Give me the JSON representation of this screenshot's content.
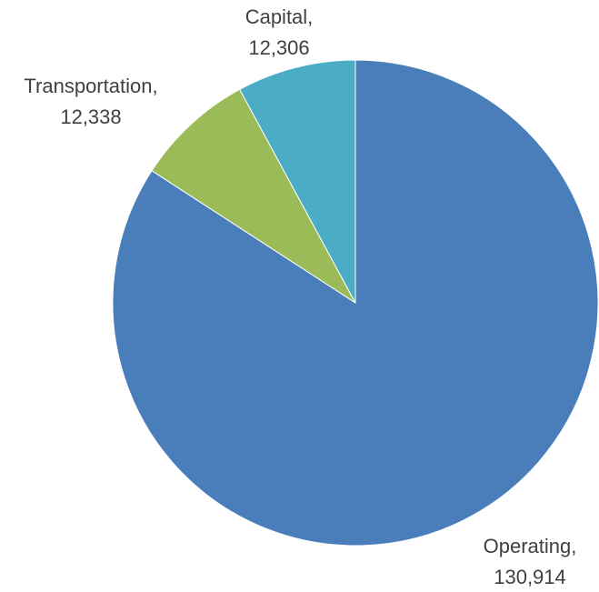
{
  "chart_data": {
    "type": "pie",
    "categories": [
      "Operating,",
      "Transportation,",
      "Capital,"
    ],
    "values": [
      130914,
      12338,
      12306
    ],
    "value_labels": [
      "130,914",
      "12,338",
      "12,306"
    ],
    "colors": [
      "#4a7ebb",
      "#9bbb59",
      "#4bacc6"
    ]
  }
}
